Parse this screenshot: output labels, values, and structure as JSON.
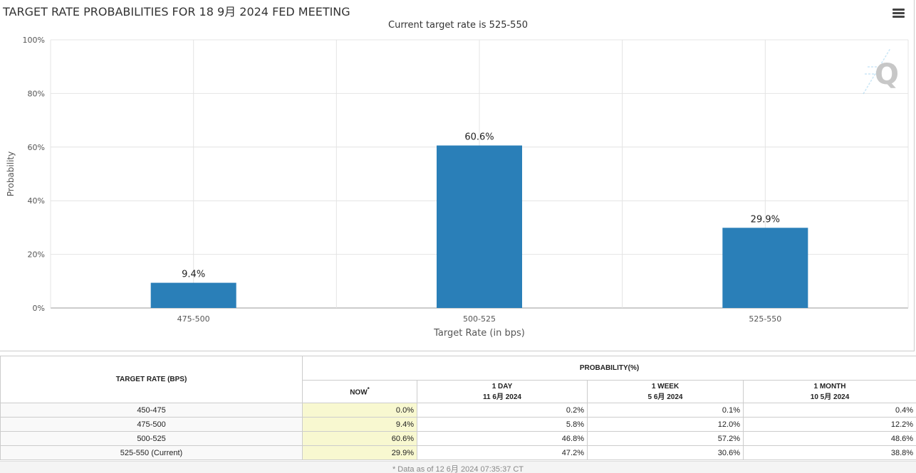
{
  "chart_data": {
    "type": "bar",
    "title": "TARGET RATE PROBABILITIES FOR 18 9月 2024 FED MEETING",
    "subtitle": "Current target rate is 525-550",
    "categories": [
      "475-500",
      "500-525",
      "525-550"
    ],
    "values": [
      9.4,
      60.6,
      29.9
    ],
    "data_labels": [
      "9.4%",
      "60.6%",
      "29.9%"
    ],
    "xlabel": "Target Rate (in bps)",
    "ylabel": "Probability",
    "ylim": [
      0,
      100
    ],
    "y_ticks": [
      "0%",
      "20%",
      "40%",
      "60%",
      "80%",
      "100%"
    ],
    "y_tick_values": [
      0,
      20,
      40,
      60,
      80,
      100
    ],
    "grid": true,
    "bar_color": "#2a7fb8"
  },
  "table": {
    "header_rate": "TARGET RATE (BPS)",
    "header_prob": "PROBABILITY(%)",
    "col_now": "NOW",
    "col_now_mark": "*",
    "col_1day": "1 DAY",
    "col_1day_date": "11 6月 2024",
    "col_1week": "1 WEEK",
    "col_1week_date": "5 6月 2024",
    "col_1month": "1 MONTH",
    "col_1month_date": "10 5月 2024",
    "rows": [
      {
        "rate": "450-475",
        "now": "0.0%",
        "day": "0.2%",
        "week": "0.1%",
        "month": "0.4%"
      },
      {
        "rate": "475-500",
        "now": "9.4%",
        "day": "5.8%",
        "week": "12.0%",
        "month": "12.2%"
      },
      {
        "rate": "500-525",
        "now": "60.6%",
        "day": "46.8%",
        "week": "57.2%",
        "month": "48.6%"
      },
      {
        "rate": "525-550 (Current)",
        "now": "29.9%",
        "day": "47.2%",
        "week": "30.6%",
        "month": "38.8%"
      }
    ],
    "footnote": "* Data as of 12 6月 2024 07:35:37 CT"
  },
  "icons": {
    "menu": "hamburger-menu-icon",
    "logo": "quikstrike-q-logo-icon"
  }
}
